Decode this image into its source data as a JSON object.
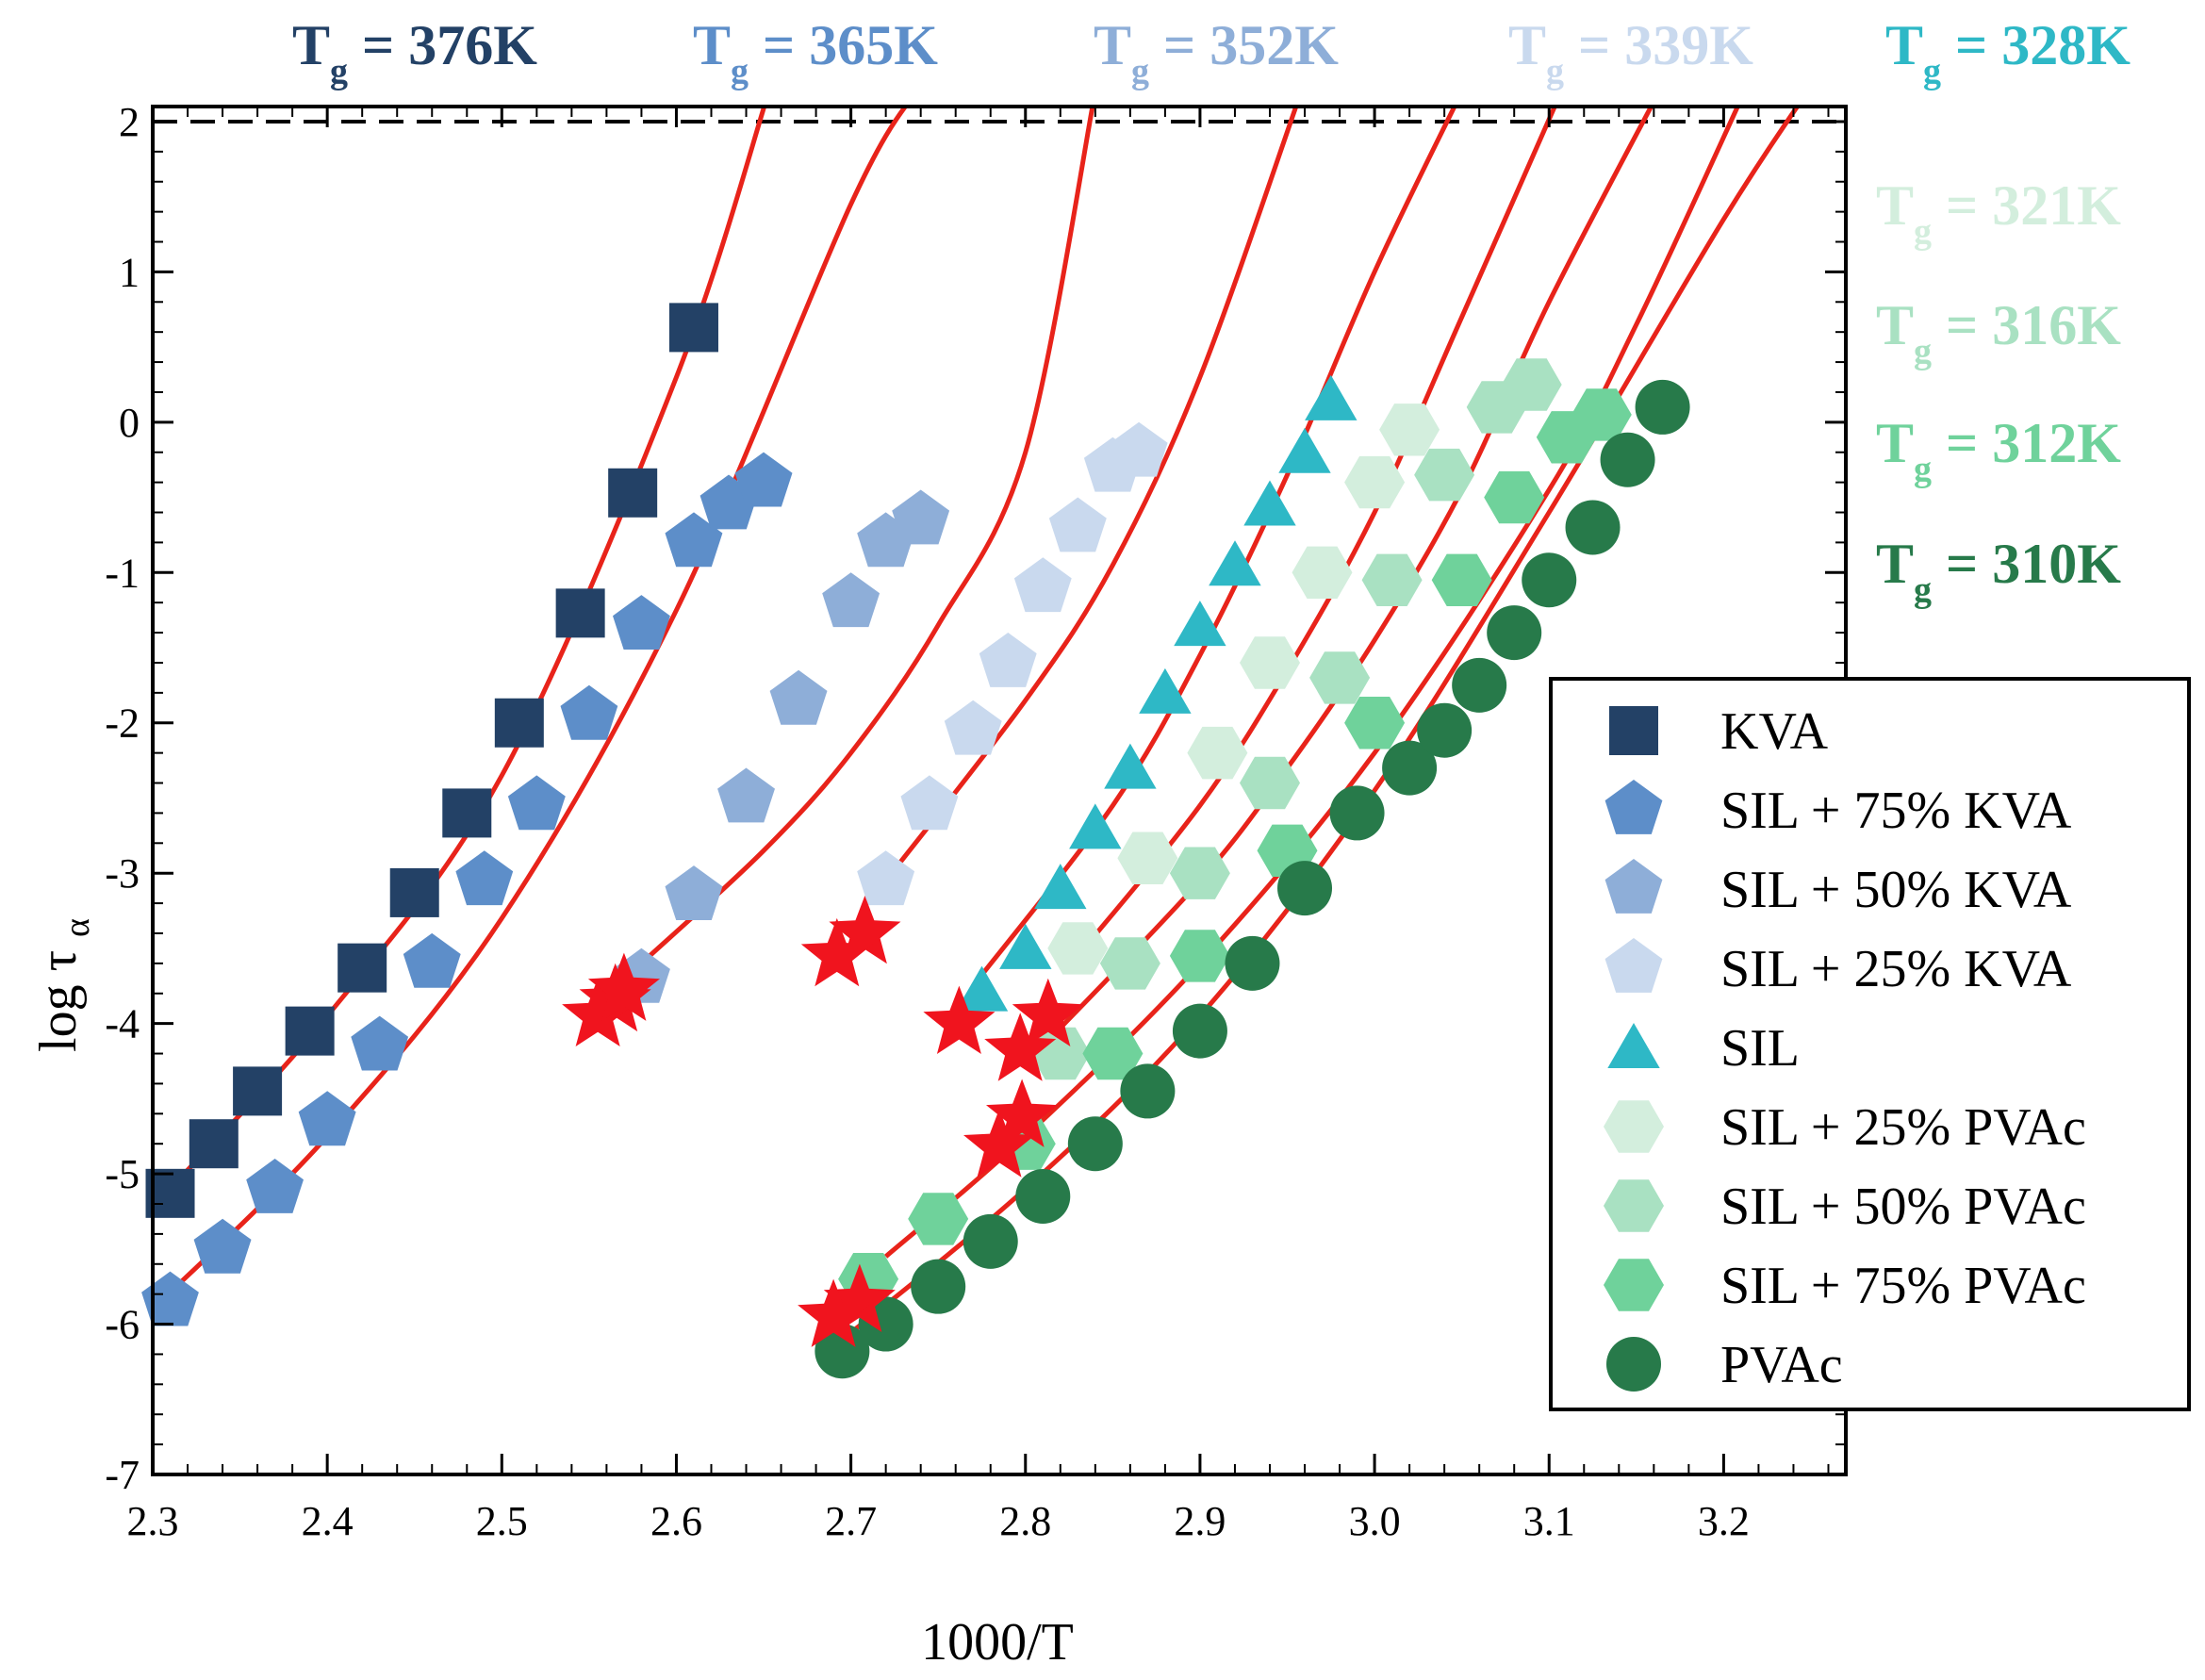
{
  "chart_data": {
    "type": "scatter",
    "xlabel": "1000/T",
    "ylabel_main": "log τ",
    "ylabel_sub": "α",
    "xlim": [
      2.3,
      3.27
    ],
    "ylim": [
      -7,
      2.1
    ],
    "xticks": [
      2.3,
      2.4,
      2.5,
      2.6,
      2.7,
      2.8,
      2.9,
      3.0,
      3.1,
      3.2
    ],
    "xtick_labels": [
      "2.3",
      "2.4",
      "2.5",
      "2.6",
      "2.7",
      "2.8",
      "2.9",
      "3.0",
      "3.1",
      "3.2"
    ],
    "yticks": [
      -7,
      -6,
      -5,
      -4,
      -3,
      -2,
      -1,
      0,
      1,
      2
    ],
    "ytick_labels": [
      "-7",
      "-6",
      "-5",
      "-4",
      "-3",
      "-2",
      "-1",
      "0",
      "1",
      "2"
    ],
    "reference_line": {
      "y": 2,
      "style": "dashed",
      "color": "#000000"
    },
    "fit_color": "#e8231a",
    "star_color": "#f0141e",
    "series": [
      {
        "name": "KVA",
        "marker": "square",
        "color": "#234166",
        "tg_sym": "T",
        "tg_sub": "g",
        "tg_val": "= 376K",
        "x": [
          2.31,
          2.335,
          2.36,
          2.39,
          2.42,
          2.45,
          2.48,
          2.51,
          2.545,
          2.575,
          2.61
        ],
        "y": [
          -5.13,
          -4.8,
          -4.45,
          -4.05,
          -3.63,
          -3.13,
          -2.6,
          -2.0,
          -1.27,
          -0.47,
          0.63
        ],
        "fit_x": [
          2.3,
          2.4,
          2.5,
          2.6,
          2.653
        ],
        "fit_y": [
          -5.22,
          -3.95,
          -2.35,
          0.3,
          2.2
        ],
        "star": [
          2.565,
          -3.85
        ]
      },
      {
        "name": "SIL + 75% KVA",
        "marker": "pentagon",
        "color": "#5d8ec9",
        "tg_sym": "T",
        "tg_sub": "g",
        "tg_val": "= 365K",
        "x": [
          2.31,
          2.34,
          2.37,
          2.4,
          2.43,
          2.46,
          2.49,
          2.52,
          2.55,
          2.58,
          2.61,
          2.63,
          2.65
        ],
        "y": [
          -5.85,
          -5.5,
          -5.1,
          -4.65,
          -4.15,
          -3.6,
          -3.05,
          -2.55,
          -1.95,
          -1.35,
          -0.8,
          -0.55,
          -0.4
        ],
        "fit_x": [
          2.3,
          2.4,
          2.5,
          2.6,
          2.7,
          2.737
        ],
        "fit_y": [
          -5.9,
          -4.75,
          -3.3,
          -1.25,
          1.45,
          2.2
        ],
        "star": [
          2.555,
          -3.95
        ]
      },
      {
        "name": "SIL + 50% KVA",
        "marker": "pentagon",
        "color": "#8eaed8",
        "tg_sym": "T",
        "tg_sub": "g",
        "tg_val": "= 352K",
        "x": [
          2.58,
          2.61,
          2.64,
          2.67,
          2.7,
          2.72,
          2.74
        ],
        "y": [
          -3.7,
          -3.15,
          -2.5,
          -1.85,
          -1.2,
          -0.8,
          -0.65
        ],
        "fit_x": [
          2.58,
          2.65,
          2.7,
          2.75,
          2.8,
          2.84
        ],
        "fit_y": [
          -3.6,
          -2.85,
          -2.2,
          -1.35,
          -0.2,
          2.2
        ],
        "star": [
          2.57,
          -3.78
        ]
      },
      {
        "name": "SIL + 25% KVA",
        "marker": "pentagon",
        "color": "#c9d9ee",
        "tg_sym": "T",
        "tg_sub": "g",
        "tg_val": "= 339K",
        "x": [
          2.72,
          2.745,
          2.77,
          2.79,
          2.81,
          2.83,
          2.85,
          2.865
        ],
        "y": [
          -3.05,
          -2.55,
          -2.05,
          -1.6,
          -1.1,
          -0.7,
          -0.3,
          -0.2
        ],
        "fit_x": [
          2.72,
          2.8,
          2.85,
          2.9,
          2.958
        ],
        "fit_y": [
          -3.05,
          -1.85,
          -0.95,
          0.3,
          2.2
        ],
        "star": [
          2.708,
          -3.4
        ]
      },
      {
        "name": "SIL",
        "marker": "triangle",
        "color": "#2eb8c6",
        "tg_sym": "T",
        "tg_sub": "g",
        "tg_val": "= 328K",
        "x": [
          2.775,
          2.8,
          2.82,
          2.84,
          2.86,
          2.88,
          2.9,
          2.92,
          2.94,
          2.96,
          2.975
        ],
        "y": [
          -3.78,
          -3.5,
          -3.1,
          -2.7,
          -2.3,
          -1.8,
          -1.35,
          -0.95,
          -0.55,
          -0.2,
          0.15
        ],
        "fit_x": [
          2.77,
          2.85,
          2.9,
          2.95,
          3.0,
          3.05
        ],
        "fit_y": [
          -3.75,
          -2.55,
          -1.55,
          -0.35,
          1.0,
          2.2
        ],
        "star": [
          2.692,
          -3.55
        ]
      },
      {
        "name": "SIL + 25% PVAc",
        "marker": "hexagon",
        "color": "#d3eedd",
        "tg_sym": "T",
        "tg_sub": "g",
        "tg_val": "= 321K",
        "x": [
          2.83,
          2.87,
          2.91,
          2.94,
          2.97,
          3.0,
          3.02
        ],
        "y": [
          -3.5,
          -2.9,
          -2.2,
          -1.6,
          -1.0,
          -0.4,
          -0.05
        ],
        "fit_x": [
          2.83,
          2.9,
          2.95,
          3.0,
          3.05,
          3.107
        ],
        "fit_y": [
          -3.55,
          -2.55,
          -1.65,
          -0.6,
          0.7,
          2.2
        ],
        "star": [
          2.762,
          -4.0
        ]
      },
      {
        "name": "SIL + 50% PVAc",
        "marker": "hexagon",
        "color": "#a9e1c2",
        "tg_sym": "T",
        "tg_sub": "g",
        "tg_val": "= 316K",
        "x": [
          2.82,
          2.86,
          2.9,
          2.94,
          2.98,
          3.01,
          3.04,
          3.07,
          3.09
        ],
        "y": [
          -4.2,
          -3.6,
          -3.0,
          -2.4,
          -1.7,
          -1.05,
          -0.35,
          0.1,
          0.25
        ],
        "fit_x": [
          2.81,
          2.9,
          2.95,
          3.0,
          3.05,
          3.1,
          3.163
        ],
        "fit_y": [
          -4.15,
          -3.05,
          -2.3,
          -1.45,
          -0.45,
          0.8,
          2.2
        ],
        "star": [
          2.813,
          -3.95
        ]
      },
      {
        "name": "SIL + 75% PVAc",
        "marker": "hexagon",
        "color": "#6fd29b",
        "tg_sym": "T",
        "tg_sub": "g",
        "tg_val": "= 312K",
        "x": [
          2.71,
          2.75,
          2.8,
          2.85,
          2.9,
          2.95,
          3.0,
          3.05,
          3.08,
          3.11,
          3.13
        ],
        "y": [
          -5.7,
          -5.3,
          -4.8,
          -4.2,
          -3.55,
          -2.85,
          -2.0,
          -1.05,
          -0.5,
          -0.1,
          0.05
        ],
        "fit_x": [
          2.72,
          2.8,
          2.9,
          3.0,
          3.1,
          3.15,
          3.212
        ],
        "fit_y": [
          -5.55,
          -4.75,
          -3.6,
          -2.2,
          -0.45,
          0.65,
          2.2
        ],
        "star": [
          2.798,
          -4.62
        ]
      },
      {
        "name": "PVAc",
        "marker": "circle",
        "color": "#277a4a",
        "tg_sym": "T",
        "tg_sub": "g",
        "tg_val": "= 310K",
        "x": [
          2.695,
          2.72,
          2.75,
          2.78,
          2.81,
          2.84,
          2.87,
          2.9,
          2.93,
          2.96,
          2.99,
          3.02,
          3.04,
          3.06,
          3.08,
          3.1,
          3.125,
          3.145,
          3.165
        ],
        "y": [
          -6.18,
          -6.0,
          -5.75,
          -5.45,
          -5.15,
          -4.8,
          -4.45,
          -4.05,
          -3.6,
          -3.1,
          -2.6,
          -2.3,
          -2.05,
          -1.75,
          -1.4,
          -1.05,
          -0.7,
          -0.25,
          0.1
        ],
        "fit_x": [
          2.69,
          2.8,
          2.9,
          3.0,
          3.1,
          3.2,
          3.248
        ],
        "fit_y": [
          -6.15,
          -5.1,
          -3.95,
          -2.45,
          -0.6,
          1.35,
          2.2
        ],
        "star": [
          2.705,
          -5.85
        ]
      }
    ],
    "extra_stars": [
      [
        2.797,
        -4.18
      ],
      [
        2.785,
        -4.82
      ],
      [
        2.69,
        -5.95
      ]
    ],
    "legend_position": "right"
  }
}
